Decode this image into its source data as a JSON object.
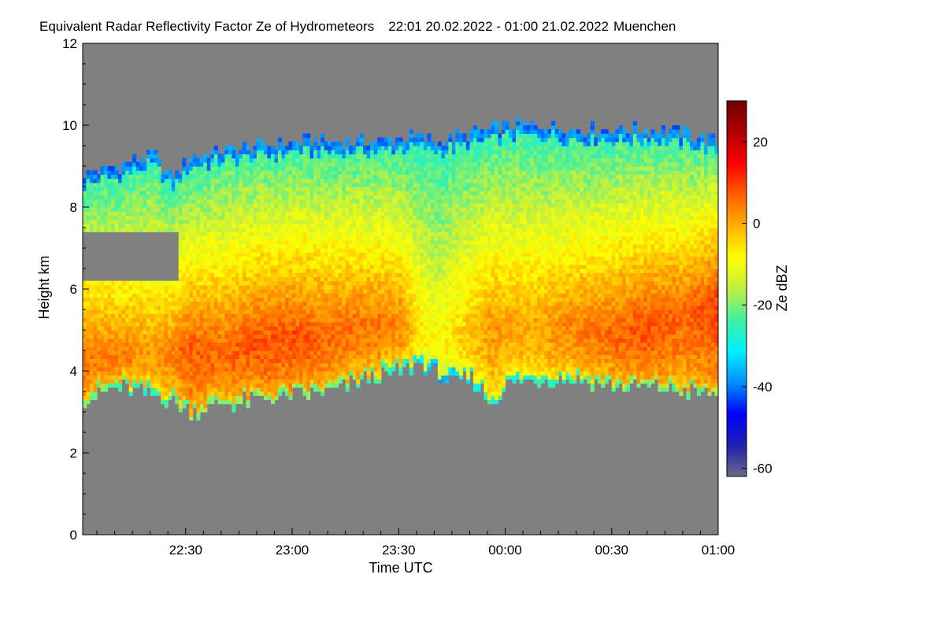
{
  "chart_data": {
    "type": "heatmap",
    "title": "Equivalent Radar Reflectivity Factor Ze of Hydrometeors",
    "time_range": "22:01 20.02.2022 - 01:00 21.02.2022",
    "location": "Muenchen",
    "xlabel": "Time UTC",
    "ylabel": "Height km",
    "colorbar_label": "Ze dBZ",
    "x_start_minutes": 0,
    "x_end_minutes": 179,
    "x_ticks": [
      {
        "label": "22:30",
        "minutes": 29
      },
      {
        "label": "23:00",
        "minutes": 59
      },
      {
        "label": "23:30",
        "minutes": 89
      },
      {
        "label": "00:00",
        "minutes": 119
      },
      {
        "label": "00:30",
        "minutes": 149
      },
      {
        "label": "01:00",
        "minutes": 179
      }
    ],
    "ylim": [
      0,
      12
    ],
    "y_ticks": [
      "0",
      "2",
      "4",
      "6",
      "8",
      "10",
      "12"
    ],
    "y_tick_values": [
      0,
      2,
      4,
      6,
      8,
      10,
      12
    ],
    "colorbar_range": [
      -62,
      30
    ],
    "colorbar_ticks": [
      "20",
      "0",
      "-20",
      "-40",
      "-60"
    ],
    "colorbar_tick_values": [
      20,
      0,
      -20,
      -40,
      -60
    ],
    "no_signal_color": "#808080",
    "colormap": [
      "#6a6a88",
      "#2020b0",
      "#0000ff",
      "#0090ff",
      "#00f0ff",
      "#40f0a0",
      "#c0f040",
      "#ffff00",
      "#ffb000",
      "#ff6000",
      "#ff0000",
      "#b00000",
      "#700000"
    ],
    "cloud_profile": {
      "minutes": [
        0,
        10,
        20,
        25,
        30,
        40,
        50,
        60,
        70,
        80,
        90,
        95,
        100,
        105,
        110,
        115,
        120,
        130,
        140,
        150,
        160,
        170,
        179
      ],
      "top_km": [
        8.8,
        9.0,
        9.3,
        8.7,
        9.2,
        9.4,
        9.5,
        9.6,
        9.6,
        9.6,
        9.7,
        9.7,
        9.6,
        9.7,
        9.8,
        9.9,
        10.0,
        10.0,
        9.9,
        9.9,
        9.9,
        9.8,
        9.6
      ],
      "base_km": [
        3.3,
        3.6,
        3.4,
        3.3,
        3.0,
        3.2,
        3.3,
        3.4,
        3.5,
        3.8,
        4.0,
        4.2,
        3.9,
        3.7,
        3.8,
        3.2,
        3.7,
        3.8,
        3.8,
        3.6,
        3.6,
        3.5,
        3.4
      ],
      "core_km": [
        4.4,
        4.4,
        4.5,
        4.5,
        4.6,
        4.6,
        4.8,
        4.9,
        5.0,
        5.2,
        5.3,
        5.0,
        4.8,
        4.9,
        5.0,
        5.1,
        5.2,
        5.2,
        5.1,
        5.0,
        5.2,
        5.5,
        5.8
      ],
      "core_dbz": [
        5,
        4,
        1,
        4,
        7,
        6,
        8,
        8,
        6,
        5,
        3,
        -6,
        -9,
        -5,
        -2,
        2,
        0,
        1,
        4,
        6,
        8,
        6,
        9
      ]
    },
    "clear_gap": {
      "minutes": [
        0,
        27
      ],
      "low_km": 6.2,
      "high_km": 7.4
    }
  }
}
